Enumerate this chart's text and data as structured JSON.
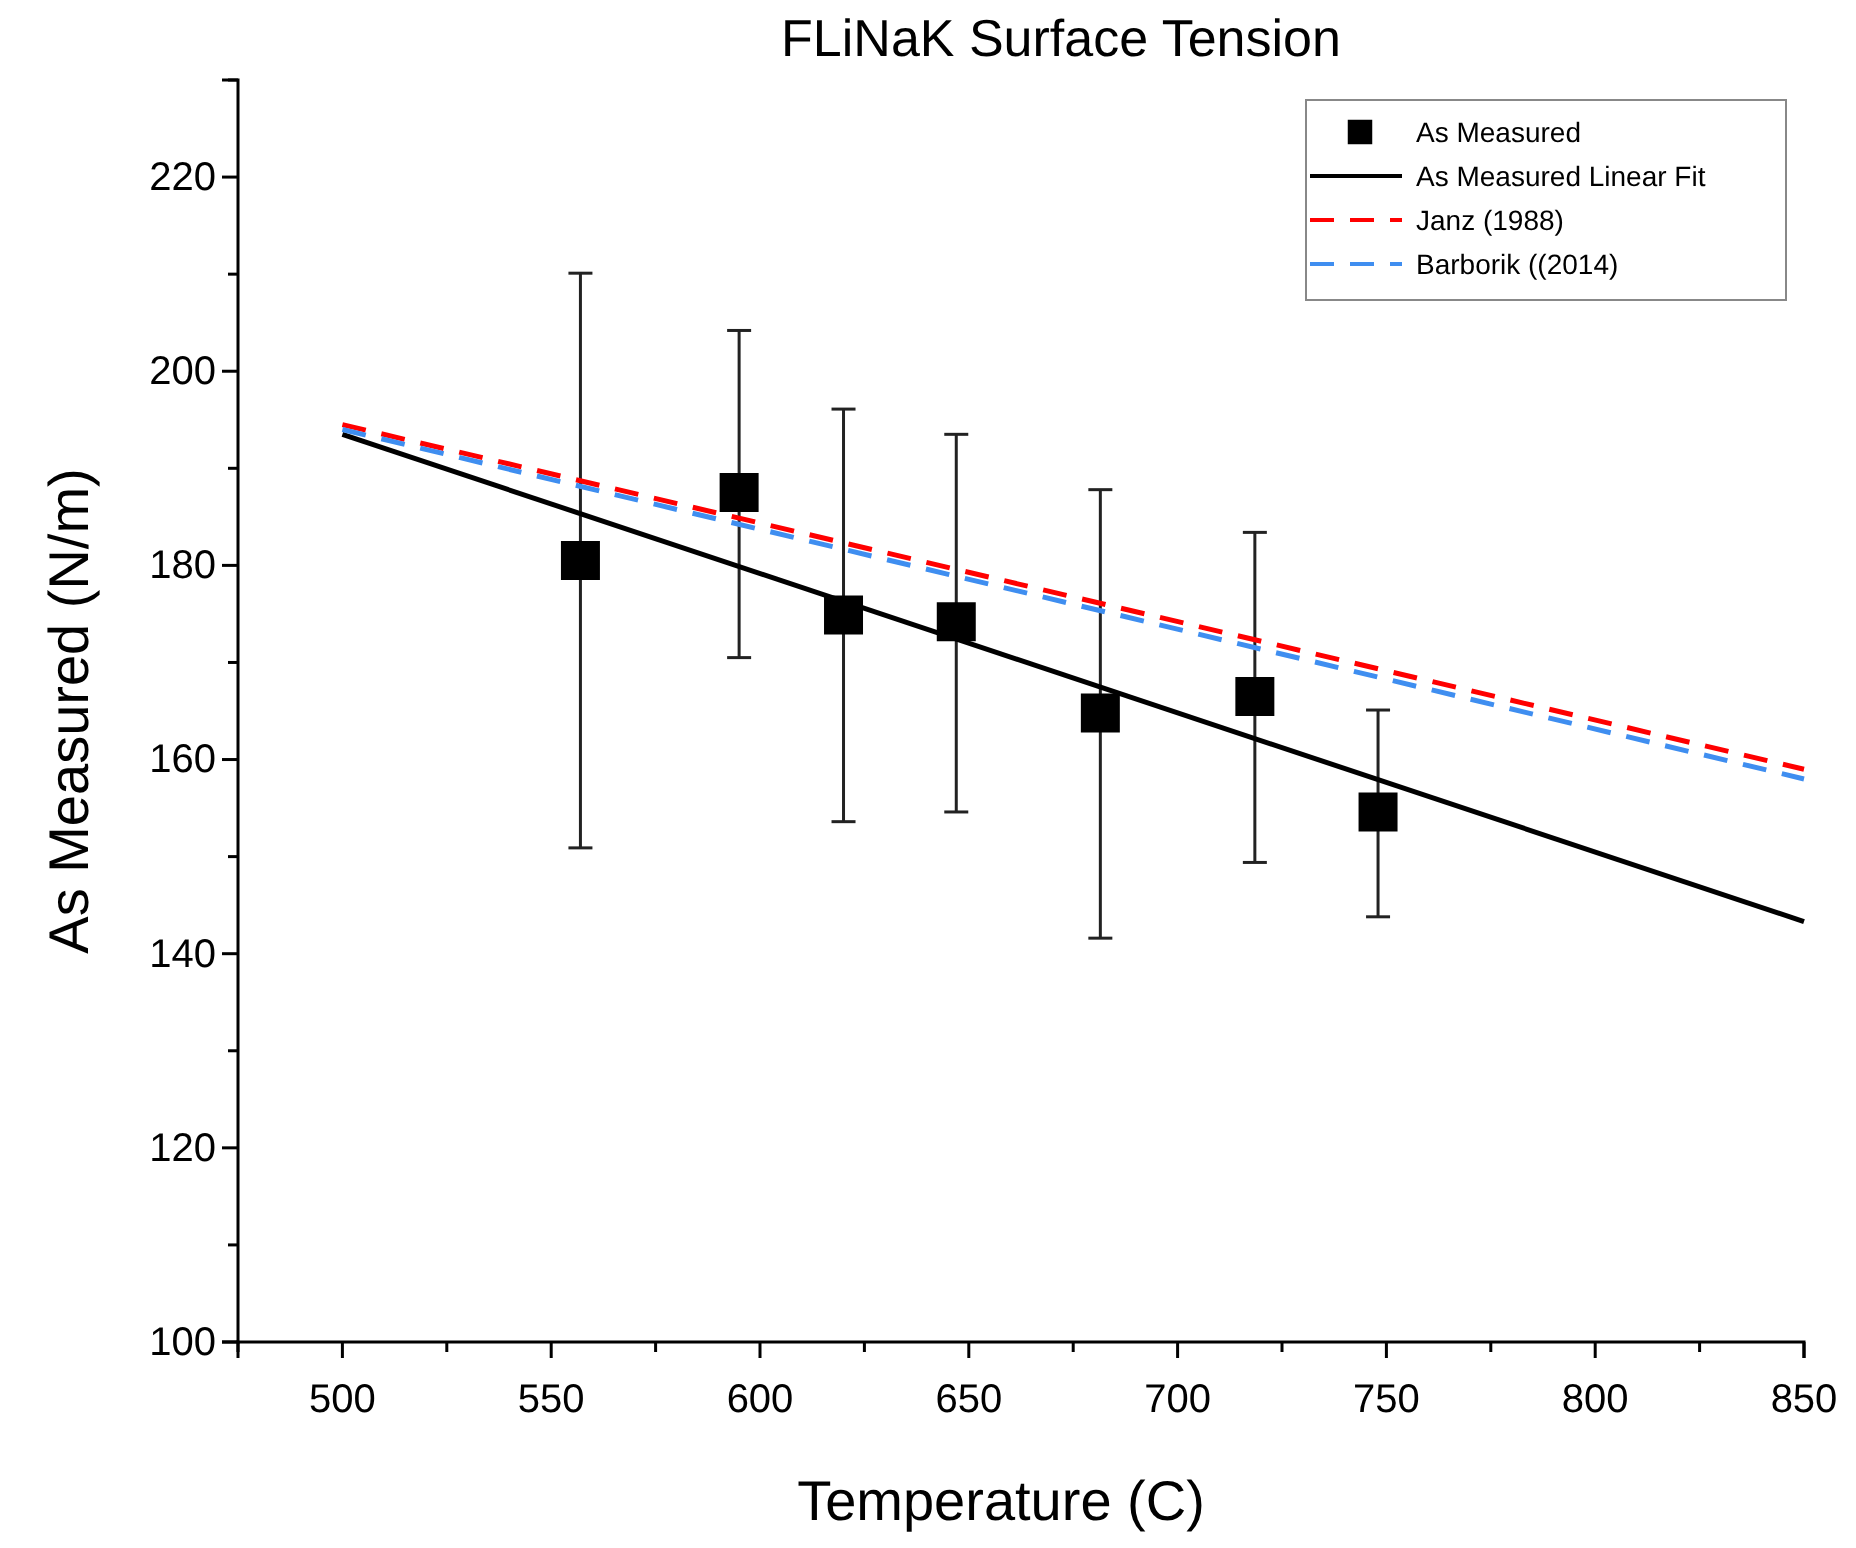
{
  "chart_data": {
    "type": "scatter",
    "title": "FLiNaK Surface Tension",
    "xlabel": "Temperature (C)",
    "ylabel": "As Measured (N/m)",
    "xlim": [
      475,
      850
    ],
    "xticks": [
      500,
      550,
      600,
      650,
      700,
      750,
      800,
      850
    ],
    "ylim": [
      100,
      230
    ],
    "yticks": [
      100,
      120,
      140,
      160,
      180,
      200,
      220
    ],
    "legend": "top right",
    "series": [
      {
        "name": "As Measured",
        "marker": "square",
        "color": "#000000",
        "x": [
          557,
          595,
          620,
          647,
          681.5,
          718.5,
          748
        ],
        "values": [
          180.5,
          187.5,
          174.9,
          174.2,
          164.8,
          166.5,
          154.6
        ],
        "errors": [
          [
            150.9,
            210.1
          ],
          [
            170.5,
            204.2
          ],
          [
            153.6,
            196.1
          ],
          [
            154.6,
            193.5
          ],
          [
            141.6,
            187.8
          ],
          [
            149.4,
            183.4
          ],
          [
            143.8,
            165.1
          ]
        ]
      },
      {
        "name": "As Measured Linear Fit",
        "type": "line",
        "line_style": "solid",
        "color": "#000000",
        "x": [
          500,
          850
        ],
        "values": [
          193.5,
          143.3
        ]
      },
      {
        "name": "Janz (1988)",
        "type": "line",
        "line_style": "dashed",
        "color": "#ff0000",
        "x": [
          500,
          850
        ],
        "values": [
          194.5,
          159
        ]
      },
      {
        "name": "Barborik ((2014)",
        "type": "line",
        "line_style": "dashed",
        "color": "#3f8ef0",
        "x": [
          500,
          850
        ],
        "values": [
          194,
          158
        ]
      }
    ]
  }
}
